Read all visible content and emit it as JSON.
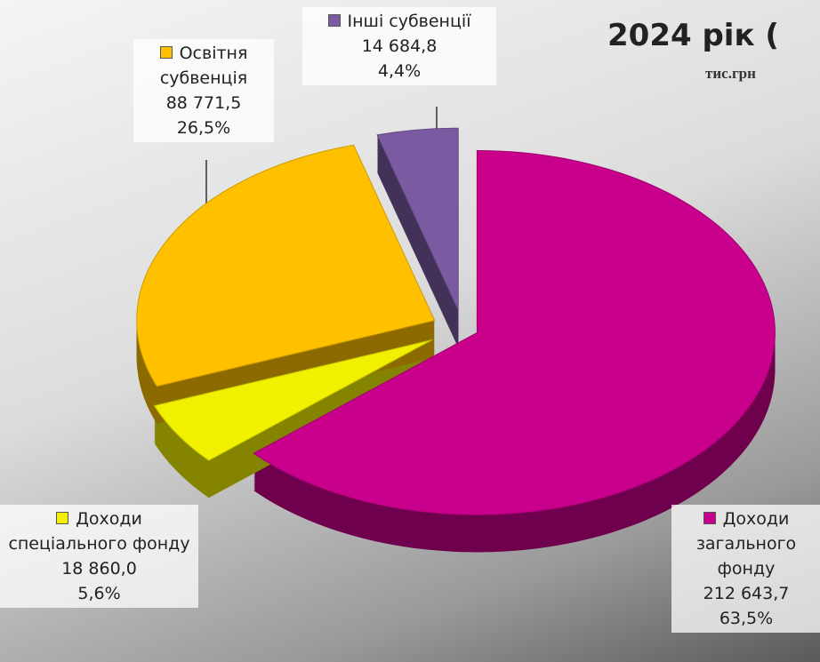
{
  "chart_data": {
    "type": "pie",
    "title": "2024 рік (",
    "subtitle": "тис.грн",
    "categories": [
      "Доходи загального фонду",
      "Доходи спеціального фонду",
      "Освітня субвенція",
      "Інші субвенції"
    ],
    "values": [
      212643.7,
      18860.0,
      88771.5,
      14684.8
    ],
    "value_labels": [
      "212 643,7",
      "18 860,0",
      "88 771,5",
      "14 684,8"
    ],
    "percents": [
      63.5,
      5.6,
      26.5,
      4.4
    ],
    "percent_labels": [
      "63,5%",
      "5,6%",
      "26,5%",
      "4,4%"
    ],
    "colors": [
      "#c8008c",
      "#f0f000",
      "#ffc000",
      "#7a5aa0"
    ]
  }
}
